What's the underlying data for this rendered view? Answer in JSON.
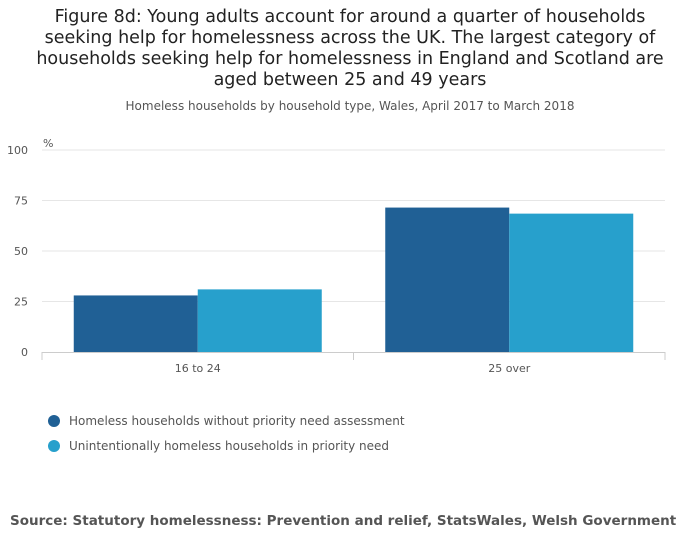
{
  "title": "Figure 8d: Young adults account for around a quarter of households seeking help for homelessness across the UK. The largest category of households seeking help for homelessness in England and Scotland are aged between 25 and 49 years",
  "subtitle": "Homeless households by household type, Wales, April 2017 to March 2018",
  "source": "Source: Statutory homelessness: Prevention and relief, StatsWales, Welsh Government",
  "chart_data": {
    "type": "bar",
    "categories": [
      "16 to 24",
      "25 over"
    ],
    "series": [
      {
        "name": "Homeless households without priority need assessment",
        "color": "#206095",
        "values": [
          28,
          71.5
        ]
      },
      {
        "name": "Unintentionally homeless households in priority need",
        "color": "#27a0cc",
        "values": [
          31,
          68.5
        ]
      }
    ],
    "ylabel": "%",
    "ylim": [
      0,
      100
    ],
    "yticks": [
      0,
      25,
      50,
      75,
      100
    ],
    "grid": true,
    "legend_position": "bottom-left"
  }
}
